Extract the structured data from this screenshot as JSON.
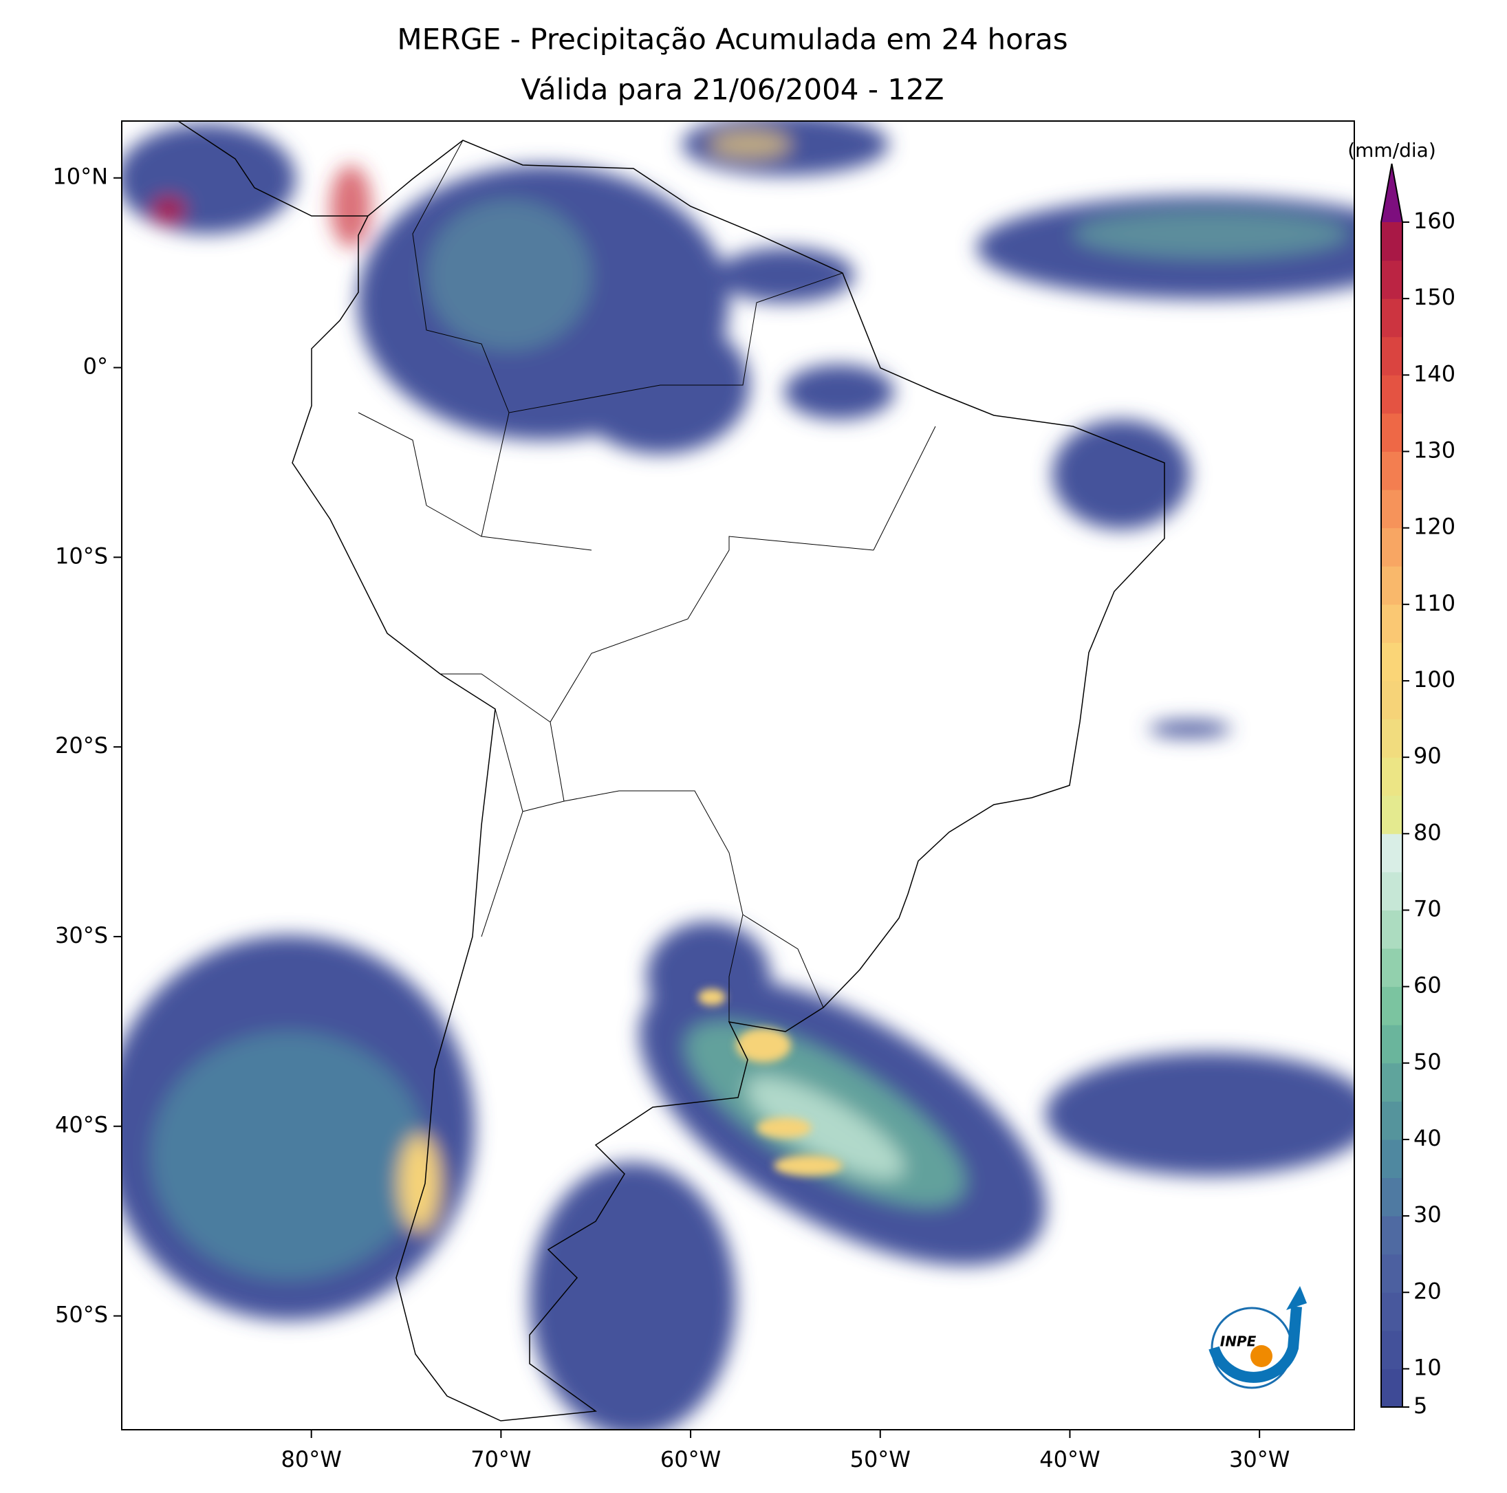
{
  "chart_data": {
    "type": "map",
    "title": "MERGE - Precipitação Acumulada em 24 horas",
    "subtitle": "Válida para 21/06/2004 - 12Z",
    "xlim": [
      -90,
      -25
    ],
    "ylim": [
      -56,
      13
    ],
    "xticks": [
      {
        "value": -80,
        "label": "80°W"
      },
      {
        "value": -70,
        "label": "70°W"
      },
      {
        "value": -60,
        "label": "60°W"
      },
      {
        "value": -50,
        "label": "50°W"
      },
      {
        "value": -40,
        "label": "40°W"
      },
      {
        "value": -30,
        "label": "30°W"
      }
    ],
    "yticks": [
      {
        "value": 10,
        "label": "10°N"
      },
      {
        "value": 0,
        "label": "0°"
      },
      {
        "value": -10,
        "label": "10°S"
      },
      {
        "value": -20,
        "label": "20°S"
      },
      {
        "value": -30,
        "label": "30°S"
      },
      {
        "value": -40,
        "label": "40°S"
      },
      {
        "value": -50,
        "label": "50°S"
      }
    ],
    "colorbar": {
      "label": "(mm/dia)",
      "clim": [
        5,
        160
      ],
      "ticks": [
        5,
        10,
        20,
        30,
        40,
        50,
        60,
        70,
        80,
        90,
        100,
        110,
        120,
        130,
        140,
        150,
        160
      ],
      "colors": [
        "#3e4a96",
        "#43519a",
        "#48589d",
        "#4c60a0",
        "#4f6aa2",
        "#4f7aa2",
        "#4f88a0",
        "#55949c",
        "#5fa49c",
        "#6ab59c",
        "#7bc4a0",
        "#92d0ad",
        "#acdcc0",
        "#c6e7d6",
        "#d9eee6",
        "#e4ea8f",
        "#ece585",
        "#f1dc7e",
        "#f6d378",
        "#fad577",
        "#fac873",
        "#f9b86b",
        "#f8a663",
        "#f6935a",
        "#f37e50",
        "#ee6846",
        "#e45342",
        "#da4440",
        "#cc3440",
        "#bb2443",
        "#a91846"
      ],
      "extend_color": "#7d0e7e"
    },
    "logo": "INPE"
  }
}
